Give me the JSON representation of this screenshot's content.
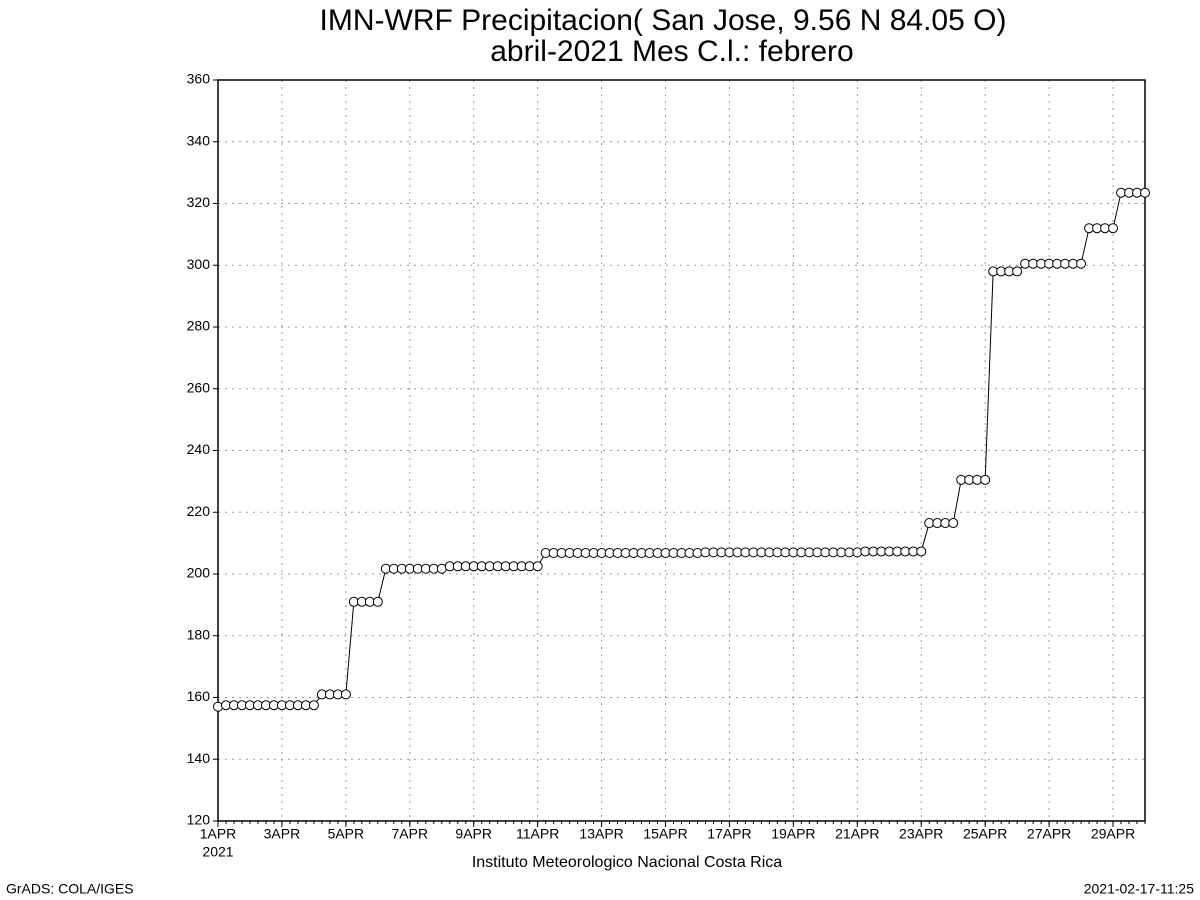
{
  "chart_data": {
    "type": "line",
    "title": "IMN-WRF  Precipitacion( San Jose, 9.56  N 84.05  O)",
    "subtitle": "abril-2021 Mes C.l.: febrero",
    "x_axis_year": "2021",
    "caption": "Instituto Meteorologico Nacional Costa Rica",
    "footer_left": "GrADS: COLA/IGES",
    "footer_right": "2021-02-17-11:25",
    "categories": [
      "1APR",
      null,
      null,
      null,
      null,
      null,
      null,
      null,
      "3APR",
      null,
      null,
      null,
      null,
      null,
      null,
      null,
      "5APR",
      null,
      null,
      null,
      null,
      null,
      null,
      null,
      "7APR",
      null,
      null,
      null,
      null,
      null,
      null,
      null,
      "9APR",
      null,
      null,
      null,
      null,
      null,
      null,
      null,
      "11APR",
      null,
      null,
      null,
      null,
      null,
      null,
      null,
      "13APR",
      null,
      null,
      null,
      null,
      null,
      null,
      null,
      "15APR",
      null,
      null,
      null,
      null,
      null,
      null,
      null,
      "17APR",
      null,
      null,
      null,
      null,
      null,
      null,
      null,
      "19APR",
      null,
      null,
      null,
      null,
      null,
      null,
      null,
      "21APR",
      null,
      null,
      null,
      null,
      null,
      null,
      null,
      "23APR",
      null,
      null,
      null,
      null,
      null,
      null,
      null,
      "25APR",
      null,
      null,
      null,
      null,
      null,
      null,
      null,
      "27APR",
      null,
      null,
      null,
      null,
      null,
      null,
      null,
      "29APR",
      null,
      null,
      null,
      null
    ],
    "series": [
      {
        "color": "#000000",
        "values": [
          157,
          157.5,
          157.5,
          157.5,
          157.5,
          157.5,
          157.5,
          157.5,
          157.5,
          157.5,
          157.5,
          157.5,
          157.5,
          161,
          161,
          161,
          161,
          191,
          191,
          191,
          191,
          201.7,
          201.7,
          201.7,
          201.7,
          201.7,
          201.7,
          201.7,
          201.7,
          202.5,
          202.5,
          202.5,
          202.5,
          202.5,
          202.5,
          202.5,
          202.5,
          202.5,
          202.5,
          202.5,
          202.5,
          206.8,
          206.8,
          206.8,
          206.8,
          206.8,
          206.8,
          206.8,
          206.8,
          206.8,
          206.8,
          206.8,
          206.8,
          206.8,
          206.8,
          206.8,
          206.8,
          206.8,
          206.8,
          206.8,
          206.8,
          207,
          207,
          207,
          207,
          207,
          207,
          207,
          207,
          207,
          207,
          207,
          207,
          207,
          207,
          207,
          207,
          207,
          207,
          207,
          207,
          207.3,
          207.3,
          207.3,
          207.3,
          207.3,
          207.3,
          207.3,
          207.3,
          216.5,
          216.5,
          216.5,
          216.5,
          230.5,
          230.5,
          230.5,
          230.5,
          298,
          298,
          298,
          298,
          300.5,
          300.5,
          300.5,
          300.5,
          300.5,
          300.5,
          300.5,
          300.5,
          312,
          312,
          312,
          312,
          323.5,
          323.5,
          323.5,
          323.5
        ]
      }
    ],
    "ylim": [
      120,
      360
    ],
    "yticks": [
      120,
      140,
      160,
      180,
      200,
      220,
      240,
      260,
      280,
      300,
      320,
      340,
      360
    ],
    "grid": true
  }
}
